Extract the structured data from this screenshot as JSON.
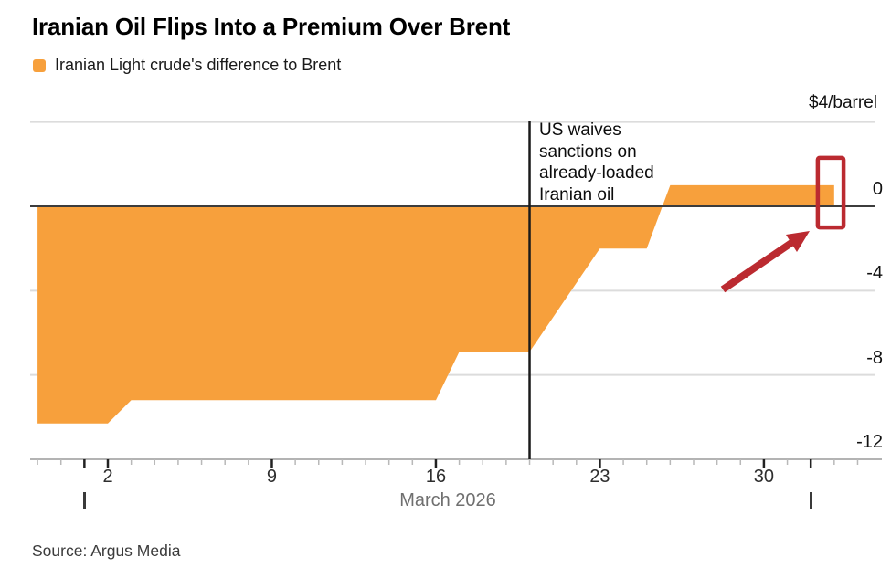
{
  "header": {
    "title": "Iranian Oil Flips Into a Premium Over Brent",
    "legend_label": "Iranian Light crude's difference to Brent"
  },
  "chart_data": {
    "type": "area",
    "title": "Iranian Oil Flips Into a Premium Over Brent",
    "series_name": "Iranian Light crude's difference to Brent",
    "unit_label": "$4/barrel",
    "xlabel": "March 2026",
    "x_day_ticks": [
      2,
      9,
      16,
      23,
      30
    ],
    "y_ticks": [
      "0",
      "-4",
      "-8",
      "-12"
    ],
    "ylim": [
      -12,
      4
    ],
    "grid": true,
    "legend_position": "top-left",
    "points": [
      {
        "day": -1,
        "value": -10.3
      },
      {
        "day": 2,
        "value": -10.3
      },
      {
        "day": 3,
        "value": -9.2
      },
      {
        "day": 16,
        "value": -9.2
      },
      {
        "day": 17,
        "value": -6.9
      },
      {
        "day": 20,
        "value": -6.9
      },
      {
        "day": 23,
        "value": -2.0
      },
      {
        "day": 25,
        "value": -2.0
      },
      {
        "day": 26,
        "value": 1.0
      },
      {
        "day": 33,
        "value": 1.0
      }
    ],
    "annotation": {
      "lines": [
        "US waives",
        "sanctions on",
        "already-loaded",
        "Iranian oil"
      ],
      "event_day": 20
    },
    "highlight": {
      "day_range": [
        32.3,
        33.4
      ],
      "value_range": [
        -1.0,
        2.3
      ]
    }
  },
  "footer": {
    "source": "Source: Argus Media"
  },
  "colors": {
    "area": "#F7A03C",
    "highlight_red": "#BB2A30",
    "grid": "#DCDCDC",
    "zero_line": "#3C3C3C",
    "event_line": "#1A1A1A",
    "axis": "#9A9A9A",
    "tick_minor": "#B9B9B9",
    "tick_major": "#222222"
  }
}
